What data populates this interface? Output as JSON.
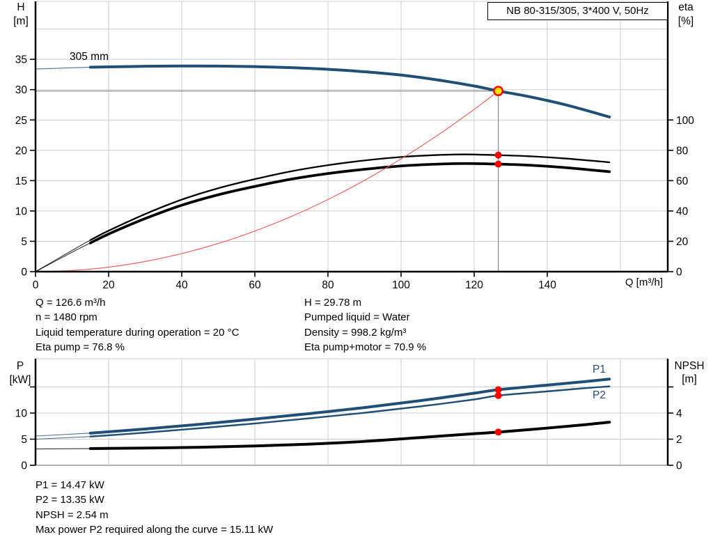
{
  "title_box": {
    "label": "NB 80-315/305, 3*400 V, 50Hz"
  },
  "info_top": {
    "left": [
      "Q = 126.6 m³/h",
      "n = 1480 rpm",
      "Liquid temperature during operation = 20 °C",
      "Eta pump = 76.8 %"
    ],
    "right": [
      "H = 29.78 m",
      "Pumped liquid = Water",
      "Density = 998.2 kg/m³",
      "Eta pump+motor = 70.9 %"
    ]
  },
  "info_bottom": [
    "P1 = 14.47 kW",
    "P2 = 13.35 kW",
    "NPSH = 2.54 m",
    "Max power P2 required along the curve = 15.11 kW"
  ],
  "colors": {
    "curve_blue": "#1f4e79",
    "curve_black": "#000000",
    "curve_red": "#ff5050",
    "marker_red": "#ff0000",
    "marker_yellow": "#ffe600",
    "grid": "#cccccc",
    "crosshair": "#8a8a8a",
    "axis": "#000000",
    "frame_gray": "#b0b0b0"
  },
  "chart_data": [
    {
      "type": "line",
      "title": "NB 80-315/305, 3*400 V, 50Hz",
      "x_axis": {
        "label": "Q [m³/h]",
        "range": [
          0,
          173
        ],
        "tick_labels": [
          0,
          20,
          40,
          60,
          80,
          100,
          120,
          140
        ],
        "grid": [
          20,
          40,
          60,
          80,
          100,
          120,
          140,
          160
        ]
      },
      "y_left": {
        "name": "H",
        "unit": "[m]",
        "range": [
          0,
          44.6
        ],
        "tick_labels": [
          0,
          5,
          10,
          15,
          20,
          25,
          30,
          35
        ],
        "grid": [
          5,
          10,
          15,
          20,
          25,
          30,
          35,
          40
        ]
      },
      "y_right": {
        "name": "eta",
        "unit": "[%]",
        "range": [
          0,
          178
        ],
        "tick_labels": [
          0,
          20,
          40,
          60,
          80,
          100
        ]
      },
      "crosshair": {
        "q": 126.6,
        "v": 29.78
      },
      "series": [
        {
          "name": "head-curve-305mm",
          "label": "305 mm",
          "axis": "left",
          "color": "blue",
          "width": 4,
          "thin_until": 15,
          "points": [
            [
              0,
              33.4
            ],
            [
              10,
              33.6
            ],
            [
              15,
              33.7
            ],
            [
              20,
              33.75
            ],
            [
              30,
              33.85
            ],
            [
              40,
              33.9
            ],
            [
              50,
              33.88
            ],
            [
              60,
              33.8
            ],
            [
              70,
              33.62
            ],
            [
              80,
              33.35
            ],
            [
              90,
              32.95
            ],
            [
              100,
              32.4
            ],
            [
              110,
              31.6
            ],
            [
              120,
              30.6
            ],
            [
              126.6,
              29.78
            ],
            [
              135,
              28.85
            ],
            [
              145,
              27.5
            ],
            [
              157,
              25.5
            ]
          ]
        },
        {
          "name": "eta-pump-curve",
          "axis": "right",
          "color": "black",
          "width": 2.3,
          "thin_until": 15,
          "points": [
            [
              0,
              0
            ],
            [
              10,
              14
            ],
            [
              15,
              20.8
            ],
            [
              20,
              27
            ],
            [
              30,
              38
            ],
            [
              40,
              47.5
            ],
            [
              50,
              55
            ],
            [
              60,
              61
            ],
            [
              70,
              66.2
            ],
            [
              80,
              70.2
            ],
            [
              90,
              73.3
            ],
            [
              100,
              75.6
            ],
            [
              110,
              76.9
            ],
            [
              118,
              77.3
            ],
            [
              126.6,
              76.8
            ],
            [
              135,
              76.1
            ],
            [
              145,
              74.6
            ],
            [
              157,
              72.1
            ]
          ]
        },
        {
          "name": "eta-pump-motor-curve",
          "axis": "right",
          "color": "black",
          "width": 3.8,
          "thin_until": 15,
          "points": [
            [
              0,
              0
            ],
            [
              10,
              12.8
            ],
            [
              15,
              18.9
            ],
            [
              20,
              24.8
            ],
            [
              30,
              35
            ],
            [
              40,
              43.8
            ],
            [
              50,
              50.7
            ],
            [
              60,
              56.2
            ],
            [
              70,
              61
            ],
            [
              80,
              64.7
            ],
            [
              90,
              67.5
            ],
            [
              100,
              69.7
            ],
            [
              110,
              70.9
            ],
            [
              118,
              71.3
            ],
            [
              126.6,
              70.9
            ],
            [
              135,
              70.2
            ],
            [
              145,
              68.6
            ],
            [
              157,
              65.9
            ]
          ]
        },
        {
          "name": "system-curve",
          "axis": "left",
          "color": "red",
          "width": 1.1,
          "points": [
            [
              0,
              0
            ],
            [
              10,
              0.19
            ],
            [
              20,
              0.74
            ],
            [
              30,
              1.67
            ],
            [
              40,
              2.97
            ],
            [
              50,
              4.64
            ],
            [
              60,
              6.69
            ],
            [
              70,
              9.1
            ],
            [
              80,
              11.89
            ],
            [
              90,
              15.05
            ],
            [
              100,
              18.58
            ],
            [
              110,
              22.48
            ],
            [
              120,
              26.75
            ],
            [
              126.6,
              29.78
            ]
          ]
        }
      ],
      "markers": [
        {
          "q": 126.6,
          "v": 29.78,
          "axis": "left",
          "style": "duty"
        },
        {
          "q": 126.6,
          "v": 76.8,
          "axis": "right",
          "style": "dot"
        },
        {
          "q": 126.6,
          "v": 70.9,
          "axis": "right",
          "style": "dot"
        }
      ],
      "duty_point": {
        "Q_m3h": 126.6,
        "H_m": 29.78,
        "eta_pump_pct": 76.8,
        "eta_pump_motor_pct": 70.9
      }
    },
    {
      "type": "line",
      "x_axis": {
        "range": [
          0,
          173
        ],
        "grid": [
          20,
          40,
          60,
          80,
          100,
          120,
          140,
          160
        ]
      },
      "y_left": {
        "name": "P",
        "unit": "[kW]",
        "range": [
          0,
          20.4
        ],
        "tick_labels": [
          0,
          5,
          10
        ],
        "tick_marks": [
          0,
          5,
          10,
          15
        ],
        "grid": [
          5,
          10,
          15
        ]
      },
      "y_right": {
        "name": "NPSH",
        "unit": "[m]",
        "range": [
          0,
          8.16
        ],
        "tick_labels": [
          0,
          2,
          4
        ],
        "tick_marks": [
          0,
          2,
          4,
          6
        ]
      },
      "series": [
        {
          "name": "p1-curve",
          "label": "P1",
          "axis": "left",
          "color": "blue",
          "width": 4,
          "thin_until": 15,
          "points": [
            [
              0,
              5.6
            ],
            [
              15,
              6.15
            ],
            [
              30,
              6.95
            ],
            [
              45,
              7.85
            ],
            [
              60,
              8.85
            ],
            [
              75,
              9.9
            ],
            [
              90,
              11.05
            ],
            [
              105,
              12.35
            ],
            [
              120,
              13.8
            ],
            [
              126.6,
              14.47
            ],
            [
              140,
              15.35
            ],
            [
              150,
              16.0
            ],
            [
              157,
              16.5
            ]
          ]
        },
        {
          "name": "p2-curve",
          "label": "P2",
          "axis": "left",
          "color": "blue",
          "width": 2.4,
          "thin_until": 15,
          "points": [
            [
              0,
              5.0
            ],
            [
              15,
              5.5
            ],
            [
              30,
              6.25
            ],
            [
              45,
              7.1
            ],
            [
              60,
              8.0
            ],
            [
              75,
              9.0
            ],
            [
              90,
              10.05
            ],
            [
              105,
              11.25
            ],
            [
              120,
              12.6
            ],
            [
              126.6,
              13.35
            ],
            [
              140,
              14.15
            ],
            [
              150,
              14.75
            ],
            [
              157,
              15.1
            ]
          ]
        },
        {
          "name": "npsh-curve",
          "axis": "right",
          "color": "black",
          "width": 4,
          "thin_until": 15,
          "points": [
            [
              0,
              1.25
            ],
            [
              15,
              1.28
            ],
            [
              30,
              1.32
            ],
            [
              45,
              1.38
            ],
            [
              60,
              1.48
            ],
            [
              75,
              1.62
            ],
            [
              90,
              1.83
            ],
            [
              105,
              2.12
            ],
            [
              120,
              2.42
            ],
            [
              126.6,
              2.54
            ],
            [
              140,
              2.85
            ],
            [
              150,
              3.1
            ],
            [
              157,
              3.3
            ]
          ]
        }
      ],
      "markers": [
        {
          "q": 126.6,
          "v": 14.47,
          "axis": "left",
          "style": "dot"
        },
        {
          "q": 126.6,
          "v": 13.35,
          "axis": "left",
          "style": "dot"
        },
        {
          "q": 126.6,
          "v": 2.54,
          "axis": "right",
          "style": "dot"
        }
      ],
      "duty_point": {
        "P1_kW": 14.47,
        "P2_kW": 13.35,
        "NPSH_m": 2.54,
        "max_P2_along_curve_kW": 15.11
      }
    }
  ]
}
